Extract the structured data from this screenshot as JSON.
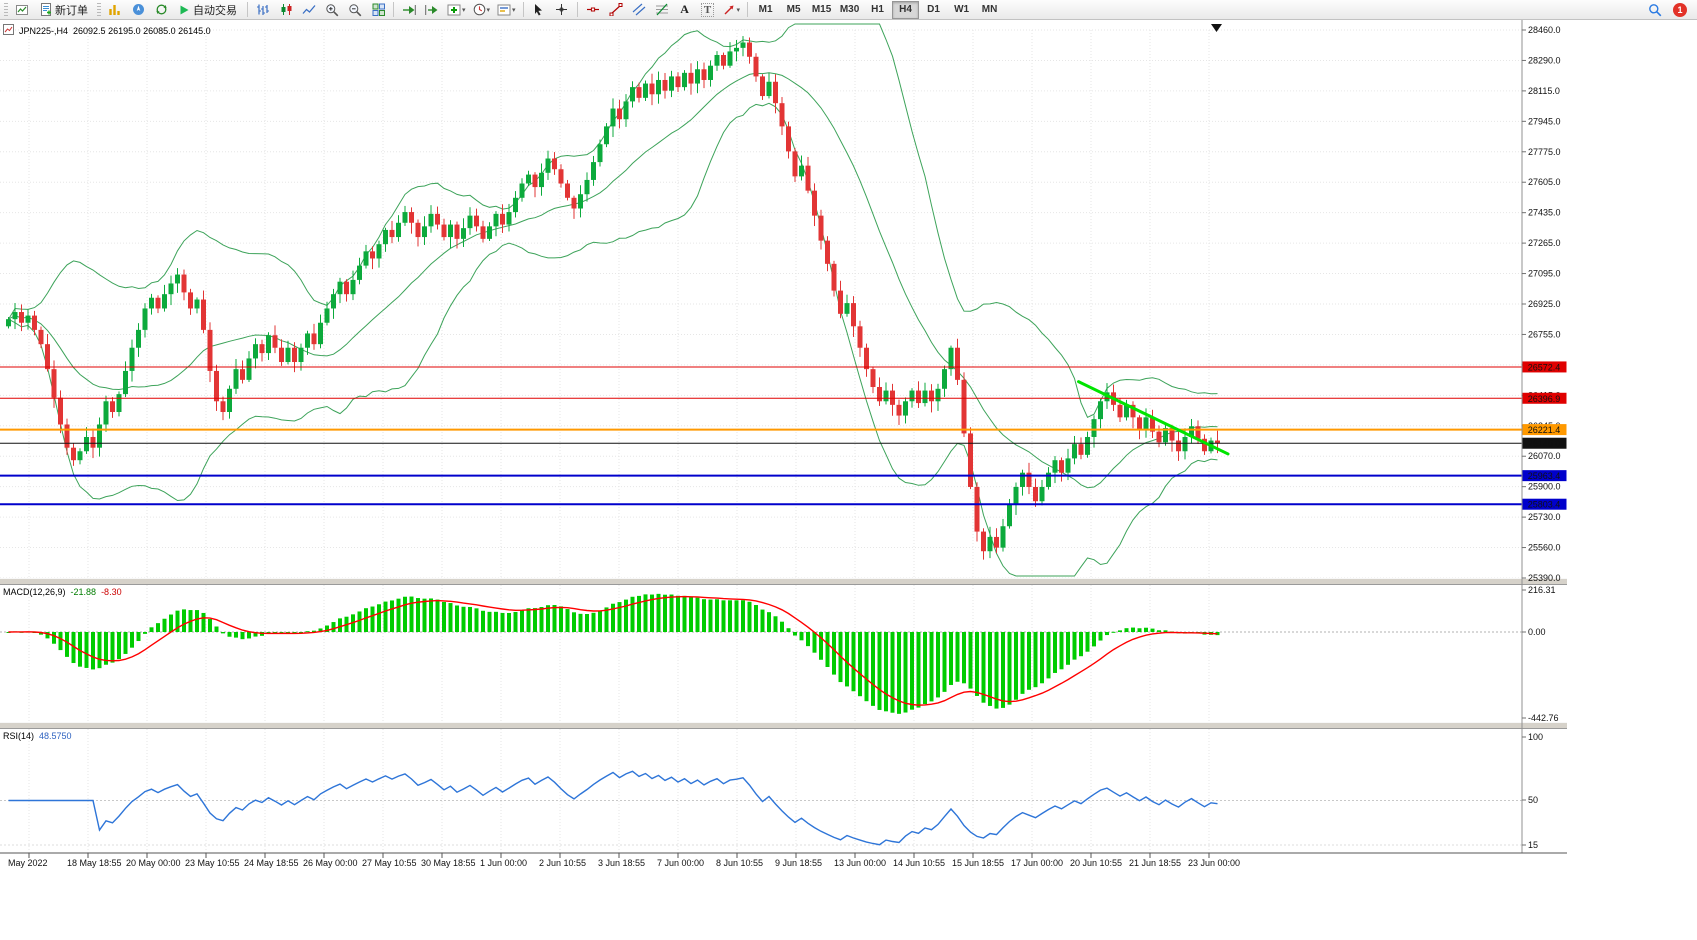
{
  "toolbar": {
    "new_order_label": "新订单",
    "autotrading_label": "自动交易",
    "timeframes": [
      "M1",
      "M5",
      "M15",
      "M30",
      "H1",
      "H4",
      "D1",
      "W1",
      "MN"
    ],
    "active_timeframe": "H4",
    "notification_count": "1"
  },
  "chart_header": {
    "symbol_period": "JPN225-,H4",
    "ohlc": "26092.5 26195.0 26085.0 26145.0"
  },
  "indicators": {
    "macd": {
      "label": "MACD(12,26,9)",
      "value_main": "-21.88",
      "value_signal": "-8.30",
      "axis_labels": [
        "216.31",
        "0.00",
        "-442.76"
      ]
    },
    "rsi": {
      "label": "RSI(14)",
      "value": "48.5750",
      "axis_labels": [
        "100",
        "50",
        "15"
      ]
    }
  },
  "price_axis": {
    "labels": [
      "28460.0",
      "28290.0",
      "28115.0",
      "27945.0",
      "27775.0",
      "27605.0",
      "27435.0",
      "27265.0",
      "27095.0",
      "26925.0",
      "26755.0",
      "26585.0",
      "26415.0",
      "26245.0",
      "26070.0",
      "25900.0",
      "25730.0",
      "25560.0",
      "25390.0"
    ]
  },
  "time_axis": {
    "labels": [
      "May 2022",
      "18 May 18:55",
      "20 May 00:00",
      "23 May 10:55",
      "24 May 18:55",
      "26 May 00:00",
      "27 May 10:55",
      "30 May 18:55",
      "1 Jun 00:00",
      "2 Jun 10:55",
      "3 Jun 18:55",
      "7 Jun 00:00",
      "8 Jun 10:55",
      "9 Jun 18:55",
      "13 Jun 00:00",
      "14 Jun 10:55",
      "15 Jun 18:55",
      "17 Jun 00:00",
      "20 Jun 10:55",
      "21 Jun 18:55",
      "23 Jun 00:00"
    ]
  },
  "chart_data": {
    "type": "candlestick",
    "symbol": "JPN225-",
    "period": "H4",
    "price_range": [
      25390,
      28460
    ],
    "closes": [
      26840,
      26880,
      26820,
      26860,
      26780,
      26700,
      26560,
      26400,
      26250,
      26120,
      26050,
      26100,
      26180,
      26120,
      26250,
      26380,
      26320,
      26420,
      26550,
      26680,
      26780,
      26900,
      26960,
      26900,
      26980,
      27040,
      27090,
      26990,
      26900,
      26950,
      26780,
      26550,
      26380,
      26320,
      26450,
      26560,
      26500,
      26620,
      26700,
      26650,
      26750,
      26680,
      26600,
      26680,
      26600,
      26680,
      26760,
      26700,
      26820,
      26900,
      26980,
      27050,
      26980,
      27060,
      27140,
      27220,
      27180,
      27260,
      27340,
      27300,
      27380,
      27440,
      27380,
      27300,
      27360,
      27430,
      27370,
      27300,
      27370,
      27290,
      27350,
      27420,
      27360,
      27290,
      27360,
      27430,
      27370,
      27440,
      27520,
      27600,
      27650,
      27580,
      27660,
      27740,
      27680,
      27600,
      27520,
      27460,
      27540,
      27620,
      27720,
      27820,
      27920,
      28020,
      27960,
      28060,
      28140,
      28080,
      28160,
      28100,
      28180,
      28120,
      28200,
      28140,
      28220,
      28160,
      28240,
      28180,
      28260,
      28320,
      28260,
      28340,
      28360,
      28390,
      28310,
      28200,
      28090,
      28170,
      28050,
      27920,
      27780,
      27640,
      27700,
      27560,
      27420,
      27280,
      27150,
      27000,
      26870,
      26930,
      26800,
      26680,
      26560,
      26460,
      26380,
      26440,
      26360,
      26300,
      26380,
      26440,
      26370,
      26440,
      26380,
      26450,
      26560,
      26680,
      26500,
      26200,
      25900,
      25650,
      25540,
      25620,
      25560,
      25680,
      25800,
      25900,
      25980,
      25900,
      25820,
      25900,
      25980,
      26050,
      25980,
      26060,
      26140,
      26080,
      26180,
      26280,
      26380,
      26430,
      26360,
      26290,
      26360,
      26290,
      26220,
      26290,
      26210,
      26150,
      26230,
      26160,
      26100,
      26180,
      26240,
      26170,
      26100,
      26160,
      26145
    ],
    "bollinger": {
      "period": 20,
      "deviation": 2
    },
    "macd_params": {
      "fast": 12,
      "slow": 26,
      "signal": 9
    },
    "rsi_params": {
      "period": 14
    },
    "macd_range": [
      -442.76,
      216.31
    ],
    "rsi_range": [
      15,
      100
    ],
    "hlines": [
      {
        "price": 26572.4,
        "color": "#e00000",
        "width": 1
      },
      {
        "price": 26396.9,
        "color": "#e00000",
        "width": 1
      },
      {
        "price": 26221.4,
        "color": "#ff9900",
        "width": 2
      },
      {
        "price": 26145.0,
        "color": "#111111",
        "width": 1
      },
      {
        "price": 25963.4,
        "color": "#0000cc",
        "width": 2
      },
      {
        "price": 25803.4,
        "color": "#0000cc",
        "width": 2
      }
    ],
    "trendline": {
      "i1": 165,
      "p1": 26490,
      "i2": 188,
      "p2": 26085,
      "color": "#00e400"
    },
    "colors": {
      "up": "#0caa3c",
      "down": "#e23535",
      "bollinger": "#3da35a",
      "macd_hist": "#00cc00",
      "macd_signal": "#ff0000",
      "rsi": "#2e75d8"
    }
  }
}
